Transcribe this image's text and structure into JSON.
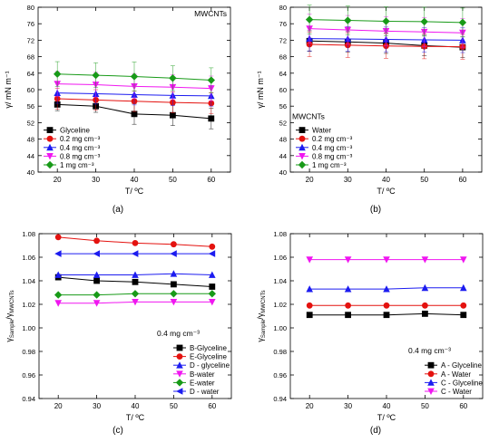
{
  "chart_data": [
    {
      "panel_label": "(a)",
      "type": "line",
      "title": "",
      "annotation": "MWCNTs",
      "xlabel": "T/ ºC",
      "ylabel": "γ/ mN m⁻¹",
      "xlim": [
        15,
        65
      ],
      "ylim": [
        40,
        80
      ],
      "xticks": [
        20,
        30,
        40,
        50,
        60
      ],
      "yticks": [
        40,
        44,
        48,
        52,
        56,
        60,
        64,
        68,
        72,
        76,
        80
      ],
      "tick_decimals": 0,
      "legend_position": "bottom-left",
      "error_bars": true,
      "x": [
        20,
        30,
        40,
        50,
        60
      ],
      "series": [
        {
          "name": "Glyceline",
          "color": "#000000",
          "marker": "square",
          "values": [
            56.4,
            56.0,
            54.1,
            53.8,
            53.0
          ],
          "errors": [
            1.5,
            1.5,
            2.5,
            2.5,
            2.5
          ]
        },
        {
          "name": "0.2 mg cm⁻³",
          "color": "#e4120f",
          "marker": "circle",
          "values": [
            57.8,
            57.5,
            57.2,
            56.9,
            56.7
          ],
          "errors": [
            2.5,
            2.5,
            2.5,
            2.5,
            2.5
          ]
        },
        {
          "name": "0.4 mg cm⁻³",
          "color": "#1c1cf0",
          "marker": "triangle-up",
          "values": [
            59.2,
            59.0,
            58.8,
            58.6,
            58.5
          ],
          "errors": [
            2.5,
            2.5,
            2.5,
            2.5,
            2.5
          ]
        },
        {
          "name": "0.8 mg cm⁻³",
          "color": "#f016f0",
          "marker": "triangle-down",
          "values": [
            61.4,
            61.2,
            60.8,
            60.6,
            60.3
          ],
          "errors": [
            3.0,
            3.0,
            3.0,
            3.0,
            3.0
          ]
        },
        {
          "name": "1 mg cm⁻³",
          "color": "#189a18",
          "marker": "diamond",
          "values": [
            63.8,
            63.5,
            63.2,
            62.8,
            62.3
          ],
          "errors": [
            3.0,
            3.0,
            3.5,
            3.0,
            3.0
          ]
        }
      ]
    },
    {
      "panel_label": "(b)",
      "type": "line",
      "title": "",
      "annotation": "MWCNTs",
      "xlabel": "T/ ºC",
      "ylabel": "γ/ mN m⁻¹",
      "xlim": [
        15,
        65
      ],
      "ylim": [
        40,
        80
      ],
      "xticks": [
        20,
        30,
        40,
        50,
        60
      ],
      "yticks": [
        40,
        44,
        48,
        52,
        56,
        60,
        64,
        68,
        72,
        76,
        80
      ],
      "tick_decimals": 0,
      "legend_position": "bottom-left",
      "error_bars": true,
      "x": [
        20,
        30,
        40,
        50,
        60
      ],
      "series": [
        {
          "name": "Water",
          "color": "#000000",
          "marker": "square",
          "values": [
            71.8,
            71.6,
            71.3,
            70.7,
            70.3
          ],
          "errors": [
            2.5,
            2.5,
            2.5,
            2.5,
            2.5
          ]
        },
        {
          "name": "0.2 mg cm⁻³",
          "color": "#e4120f",
          "marker": "circle",
          "values": [
            71.0,
            70.8,
            70.6,
            70.5,
            70.4
          ],
          "errors": [
            3.0,
            3.0,
            3.0,
            3.0,
            3.0
          ]
        },
        {
          "name": "0.4 mg cm⁻³",
          "color": "#1c1cf0",
          "marker": "triangle-up",
          "values": [
            72.4,
            72.3,
            72.2,
            72.1,
            72.0
          ],
          "errors": [
            3.0,
            3.0,
            3.0,
            3.0,
            3.0
          ]
        },
        {
          "name": "0.8 mg cm⁻³",
          "color": "#f016f0",
          "marker": "triangle-down",
          "values": [
            74.8,
            74.5,
            74.2,
            74.0,
            73.8
          ],
          "errors": [
            3.5,
            3.5,
            3.5,
            3.5,
            3.5
          ]
        },
        {
          "name": "1 mg cm⁻³",
          "color": "#189a18",
          "marker": "diamond",
          "values": [
            77.0,
            76.8,
            76.6,
            76.5,
            76.3
          ],
          "errors": [
            3.5,
            3.5,
            3.5,
            3.5,
            3.5
          ]
        }
      ]
    },
    {
      "panel_label": "(c)",
      "type": "line",
      "title": "",
      "annotation": "0.4 mg cm⁻³",
      "xlabel": "T/ ºC",
      "ylabel": "γSample/γMWCNTs",
      "xlim": [
        15,
        65
      ],
      "ylim": [
        0.94,
        1.08
      ],
      "xticks": [
        20,
        30,
        40,
        50,
        60
      ],
      "yticks": [
        0.94,
        0.96,
        0.98,
        1.0,
        1.02,
        1.04,
        1.06,
        1.08
      ],
      "tick_decimals": 2,
      "legend_position": "bottom-right",
      "error_bars": false,
      "x": [
        20,
        30,
        40,
        50,
        60
      ],
      "series": [
        {
          "name": "B-Glyceline",
          "color": "#000000",
          "marker": "square",
          "values": [
            1.043,
            1.04,
            1.039,
            1.037,
            1.035
          ]
        },
        {
          "name": "E-Glyceline",
          "color": "#e4120f",
          "marker": "circle",
          "values": [
            1.077,
            1.074,
            1.072,
            1.071,
            1.069
          ]
        },
        {
          "name": "D - glyceline",
          "color": "#1c1cf0",
          "marker": "triangle-up",
          "values": [
            1.045,
            1.045,
            1.045,
            1.046,
            1.045
          ]
        },
        {
          "name": "B-water",
          "color": "#f016f0",
          "marker": "triangle-down",
          "values": [
            1.021,
            1.021,
            1.022,
            1.022,
            1.022
          ]
        },
        {
          "name": "E-water",
          "color": "#189a18",
          "marker": "diamond",
          "values": [
            1.028,
            1.028,
            1.029,
            1.029,
            1.029
          ]
        },
        {
          "name": "D - water",
          "color": "#1c1cf0",
          "marker": "triangle-left",
          "values": [
            1.063,
            1.063,
            1.063,
            1.063,
            1.063
          ]
        }
      ]
    },
    {
      "panel_label": "(d)",
      "type": "line",
      "title": "",
      "annotation": "0.4 mg cm⁻³",
      "xlabel": "T/ ºC",
      "ylabel": "γSample/γMWCNTs",
      "xlim": [
        15,
        65
      ],
      "ylim": [
        0.94,
        1.08
      ],
      "xticks": [
        20,
        30,
        40,
        50,
        60
      ],
      "yticks": [
        0.94,
        0.96,
        0.98,
        1.0,
        1.02,
        1.04,
        1.06,
        1.08
      ],
      "tick_decimals": 2,
      "legend_position": "bottom-right",
      "error_bars": false,
      "x": [
        20,
        30,
        40,
        50,
        60
      ],
      "series": [
        {
          "name": "A - Glyceline",
          "color": "#000000",
          "marker": "square",
          "values": [
            1.011,
            1.011,
            1.011,
            1.012,
            1.011
          ]
        },
        {
          "name": "A - Water",
          "color": "#e4120f",
          "marker": "circle",
          "values": [
            1.019,
            1.019,
            1.019,
            1.019,
            1.019
          ]
        },
        {
          "name": "C - Glyceline",
          "color": "#1c1cf0",
          "marker": "triangle-up",
          "values": [
            1.033,
            1.033,
            1.033,
            1.034,
            1.034
          ]
        },
        {
          "name": "C - Water",
          "color": "#f016f0",
          "marker": "triangle-down",
          "values": [
            1.058,
            1.058,
            1.058,
            1.058,
            1.058
          ]
        }
      ]
    }
  ]
}
